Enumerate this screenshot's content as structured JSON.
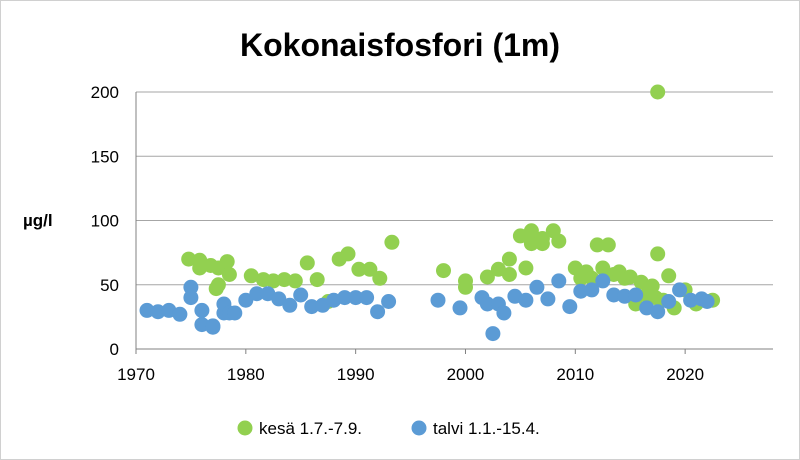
{
  "chart_data": {
    "type": "scatter",
    "title": "Kokonaisfosfori (1m)",
    "xlabel": "",
    "ylabel": "µg/l",
    "xlim": [
      1970,
      2028
    ],
    "ylim": [
      0,
      200
    ],
    "x_ticks": [
      "1970",
      "1980",
      "1990",
      "2000",
      "2010",
      "2020"
    ],
    "y_ticks": [
      "0",
      "50",
      "100",
      "150",
      "200"
    ],
    "grid": true,
    "legend_position": "bottom",
    "series": [
      {
        "name": "kesä 1.7.-7.9.",
        "color": "#92d050",
        "points": [
          [
            1974.8,
            70
          ],
          [
            1975.8,
            69
          ],
          [
            1975.8,
            63
          ],
          [
            1976.8,
            65
          ],
          [
            1977.5,
            63
          ],
          [
            1977.3,
            47
          ],
          [
            1977.5,
            50
          ],
          [
            1978.3,
            68
          ],
          [
            1978.5,
            58
          ],
          [
            1980.5,
            57
          ],
          [
            1981.6,
            54
          ],
          [
            1982.5,
            53
          ],
          [
            1983.5,
            54
          ],
          [
            1984.5,
            53
          ],
          [
            1985.6,
            67
          ],
          [
            1986.5,
            54
          ],
          [
            1987.5,
            37
          ],
          [
            1988.5,
            70
          ],
          [
            1989.3,
            74
          ],
          [
            1990.3,
            62
          ],
          [
            1991.3,
            62
          ],
          [
            1992.2,
            55
          ],
          [
            1993.3,
            83
          ],
          [
            1998.0,
            61
          ],
          [
            2000.0,
            53
          ],
          [
            2000.0,
            48
          ],
          [
            2002.0,
            56
          ],
          [
            2003.0,
            62
          ],
          [
            2004.0,
            70
          ],
          [
            2004.0,
            58
          ],
          [
            2005.0,
            88
          ],
          [
            2005.5,
            63
          ],
          [
            2006.0,
            82
          ],
          [
            2006.0,
            92
          ],
          [
            2007.0,
            82
          ],
          [
            2007.0,
            86
          ],
          [
            2008.0,
            92
          ],
          [
            2008.5,
            84
          ],
          [
            2010.0,
            63
          ],
          [
            2010.5,
            55
          ],
          [
            2011.0,
            60
          ],
          [
            2011.5,
            55
          ],
          [
            2012.0,
            81
          ],
          [
            2012.5,
            63
          ],
          [
            2013.0,
            81
          ],
          [
            2013.5,
            58
          ],
          [
            2014.0,
            60
          ],
          [
            2014.5,
            55
          ],
          [
            2015.0,
            56
          ],
          [
            2015.5,
            35
          ],
          [
            2016.0,
            52
          ],
          [
            2016.5,
            42
          ],
          [
            2017.0,
            49
          ],
          [
            2017.3,
            40
          ],
          [
            2017.5,
            200
          ],
          [
            2017.5,
            74
          ],
          [
            2018.0,
            38
          ],
          [
            2018.5,
            57
          ],
          [
            2019.0,
            32
          ],
          [
            2020.0,
            46
          ],
          [
            2021.0,
            35
          ],
          [
            2022.5,
            38
          ]
        ]
      },
      {
        "name": "talvi 1.1.-15.4.",
        "color": "#5b9bd5",
        "points": [
          [
            1971.0,
            30
          ],
          [
            1972.0,
            29
          ],
          [
            1973.0,
            30
          ],
          [
            1974.0,
            27
          ],
          [
            1975.0,
            48
          ],
          [
            1975.0,
            40
          ],
          [
            1976.0,
            19
          ],
          [
            1976.0,
            30
          ],
          [
            1977.0,
            18
          ],
          [
            1977.0,
            17
          ],
          [
            1978.0,
            28
          ],
          [
            1978.0,
            35
          ],
          [
            1978.5,
            28
          ],
          [
            1979.0,
            28
          ],
          [
            1980.0,
            38
          ],
          [
            1981.0,
            43
          ],
          [
            1982.0,
            43
          ],
          [
            1983.0,
            39
          ],
          [
            1984.0,
            34
          ],
          [
            1985.0,
            42
          ],
          [
            1986.0,
            33
          ],
          [
            1987.0,
            34
          ],
          [
            1988.0,
            38
          ],
          [
            1989.0,
            40
          ],
          [
            1990.0,
            40
          ],
          [
            1991.0,
            40
          ],
          [
            1992.0,
            29
          ],
          [
            1993.0,
            37
          ],
          [
            1997.5,
            38
          ],
          [
            1999.5,
            32
          ],
          [
            2001.5,
            40
          ],
          [
            2002.0,
            35
          ],
          [
            2002.5,
            12
          ],
          [
            2003.0,
            35
          ],
          [
            2003.5,
            28
          ],
          [
            2004.5,
            41
          ],
          [
            2005.5,
            38
          ],
          [
            2006.5,
            48
          ],
          [
            2007.5,
            39
          ],
          [
            2008.5,
            53
          ],
          [
            2009.5,
            33
          ],
          [
            2010.5,
            45
          ],
          [
            2011.5,
            46
          ],
          [
            2012.5,
            53
          ],
          [
            2013.5,
            42
          ],
          [
            2014.5,
            41
          ],
          [
            2015.5,
            42
          ],
          [
            2016.5,
            32
          ],
          [
            2017.5,
            29
          ],
          [
            2018.5,
            37
          ],
          [
            2019.5,
            46
          ],
          [
            2020.5,
            38
          ],
          [
            2021.5,
            39
          ],
          [
            2022.0,
            37
          ]
        ]
      }
    ]
  }
}
